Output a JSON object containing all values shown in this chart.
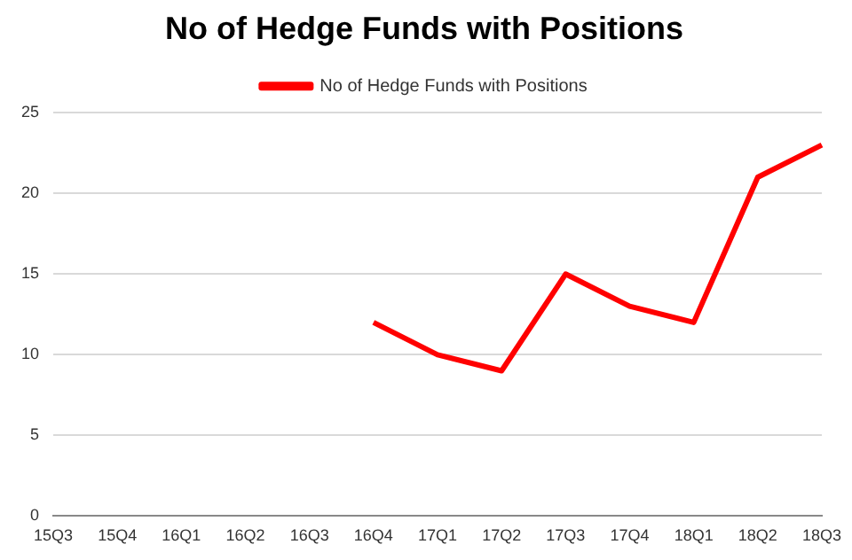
{
  "chart_data": {
    "type": "line",
    "title": "No of Hedge Funds with Positions",
    "categories": [
      "15Q3",
      "15Q4",
      "16Q1",
      "16Q2",
      "16Q3",
      "16Q4",
      "17Q1",
      "17Q2",
      "17Q3",
      "17Q4",
      "18Q1",
      "18Q2",
      "18Q3"
    ],
    "series": [
      {
        "name": "No of Hedge Funds with Positions",
        "color": "#ff0000",
        "values": [
          null,
          null,
          null,
          null,
          null,
          12,
          10,
          9,
          15,
          13,
          12,
          21,
          23
        ]
      }
    ],
    "ylim": [
      0,
      25
    ],
    "yticks": [
      0,
      5,
      10,
      15,
      20,
      25
    ],
    "grid": "y",
    "legend": "top",
    "marker": "none",
    "line_style": "solid"
  }
}
